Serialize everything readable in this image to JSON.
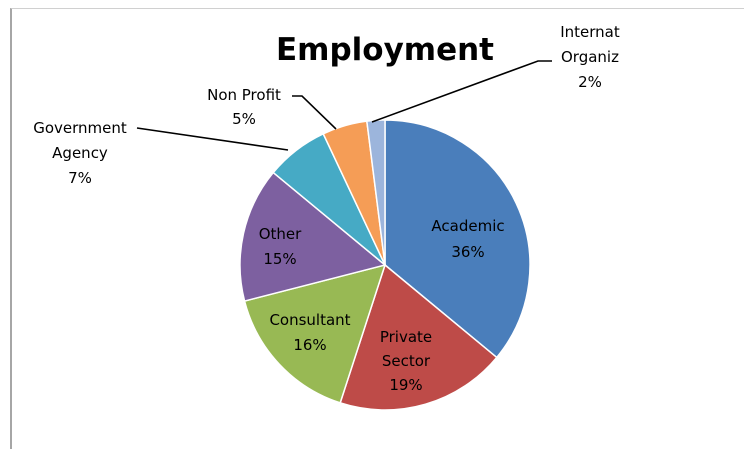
{
  "chart_data": {
    "type": "pie",
    "title": "Employment",
    "slices": [
      {
        "name": "Academic",
        "value": 36,
        "pct_label": "36%",
        "color": "#4a7ebb"
      },
      {
        "name": "Private Sector",
        "value": 19,
        "pct_label": "19%",
        "color": "#be4b48"
      },
      {
        "name": "Consultant",
        "value": 16,
        "pct_label": "16%",
        "color": "#98b954"
      },
      {
        "name": "Other",
        "value": 15,
        "pct_label": "15%",
        "color": "#7d60a0"
      },
      {
        "name": "Government Agency",
        "value": 7,
        "pct_label": "7%",
        "color": "#46aac5"
      },
      {
        "name": "Non Profit",
        "value": 5,
        "pct_label": "5%",
        "color": "#f59d56"
      },
      {
        "name": "Internat Organiz",
        "value": 2,
        "pct_label": "2%",
        "color": "#9cb5dc"
      }
    ],
    "start_angle_deg": 0,
    "direction": "clockwise",
    "legend": "none"
  }
}
